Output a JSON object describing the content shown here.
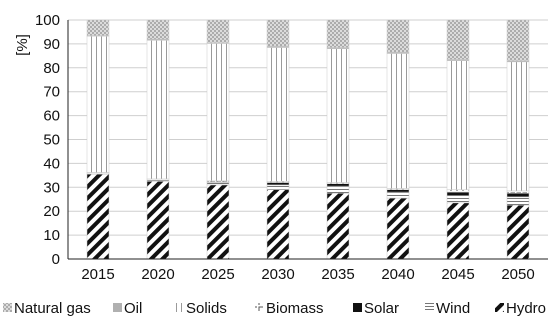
{
  "chart_data": {
    "type": "bar",
    "stacked": true,
    "ylabel": "[%]",
    "xlabel": "",
    "ylim": [
      0,
      100
    ],
    "yticks": [
      0,
      10,
      20,
      30,
      40,
      50,
      60,
      70,
      80,
      90,
      100
    ],
    "grid": true,
    "legend_position": "bottom",
    "categories": [
      "2015",
      "2020",
      "2025",
      "2030",
      "2035",
      "2040",
      "2045",
      "2050"
    ],
    "series": [
      {
        "name": "Hydro",
        "pattern": "diagonal-stripes",
        "values": [
          35.5,
          32.5,
          31.0,
          29.0,
          27.5,
          25.5,
          23.5,
          22.5
        ]
      },
      {
        "name": "Wind",
        "pattern": "horizontal-lines",
        "values": [
          0.5,
          0.5,
          1.0,
          2.0,
          3.0,
          2.5,
          3.0,
          3.5
        ]
      },
      {
        "name": "Solar",
        "pattern": "solid-black",
        "values": [
          0.0,
          0.0,
          0.2,
          1.0,
          1.0,
          1.0,
          1.5,
          1.5
        ]
      },
      {
        "name": "Biomass",
        "pattern": "corner-marks",
        "values": [
          0.2,
          0.5,
          0.5,
          0.5,
          0.5,
          0.5,
          1.0,
          1.0
        ]
      },
      {
        "name": "Solids",
        "pattern": "vertical-lines",
        "values": [
          57.0,
          58.0,
          57.5,
          56.0,
          56.0,
          56.5,
          54.0,
          54.0
        ]
      },
      {
        "name": "Oil",
        "pattern": "light-grey",
        "values": [
          0.3,
          0.5,
          0.3,
          0.5,
          0.5,
          0.5,
          0.5,
          0.5
        ]
      },
      {
        "name": "Natural gas",
        "pattern": "dotted",
        "values": [
          6.5,
          8.0,
          9.5,
          11.0,
          11.5,
          13.5,
          16.5,
          17.0
        ]
      }
    ],
    "legend_order": [
      "Natural gas",
      "Oil",
      "Solids",
      "Biomass",
      "Solar",
      "Wind",
      "Hydro"
    ]
  }
}
